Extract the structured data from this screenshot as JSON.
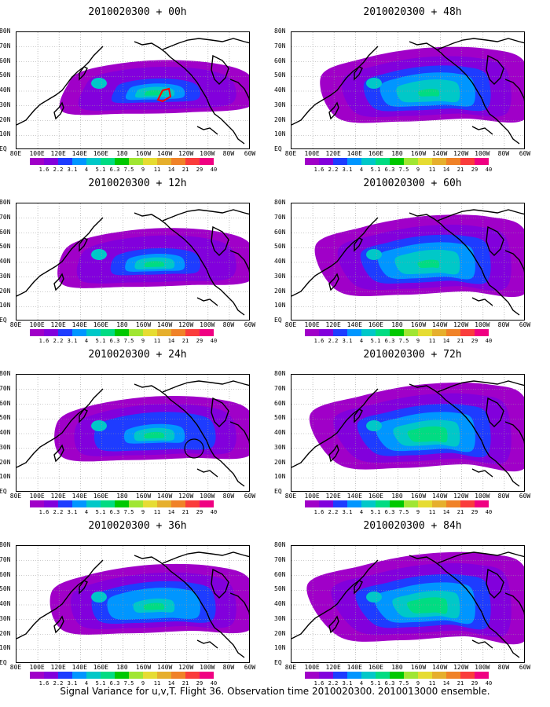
{
  "panels": [
    {
      "title": "2010020300 + 00h",
      "level": 1
    },
    {
      "title": "2010020300 + 48h",
      "level": 5
    },
    {
      "title": "2010020300 + 12h",
      "level": 2
    },
    {
      "title": "2010020300 + 60h",
      "level": 6
    },
    {
      "title": "2010020300 + 24h",
      "level": 3
    },
    {
      "title": "2010020300 + 72h",
      "level": 7
    },
    {
      "title": "2010020300 + 36h",
      "level": 4
    },
    {
      "title": "2010020300 + 84h",
      "level": 8
    }
  ],
  "lat_labels": [
    "80N",
    "70N",
    "60N",
    "50N",
    "40N",
    "30N",
    "20N",
    "10N",
    "EQ"
  ],
  "lon_labels": [
    "80E",
    "100E",
    "120E",
    "140E",
    "160E",
    "180",
    "160W",
    "140W",
    "120W",
    "100W",
    "80W",
    "60W"
  ],
  "colorbar": {
    "labels": [
      "1.6",
      "2.2",
      "3.1",
      "4",
      "5.1",
      "6.3",
      "7.5",
      "9",
      "11",
      "14",
      "21",
      "29",
      "40"
    ],
    "colors": [
      "#a000c8",
      "#8200dc",
      "#1e3cff",
      "#0096ff",
      "#00c8c8",
      "#00dc82",
      "#00c800",
      "#a0e632",
      "#e6dc32",
      "#e6af2d",
      "#f08228",
      "#fa3c3c",
      "#f00082"
    ]
  },
  "caption": "Signal Variance for u,v,T. Flight 36. Observation time 2010020300. 2010013000 ensemble."
}
